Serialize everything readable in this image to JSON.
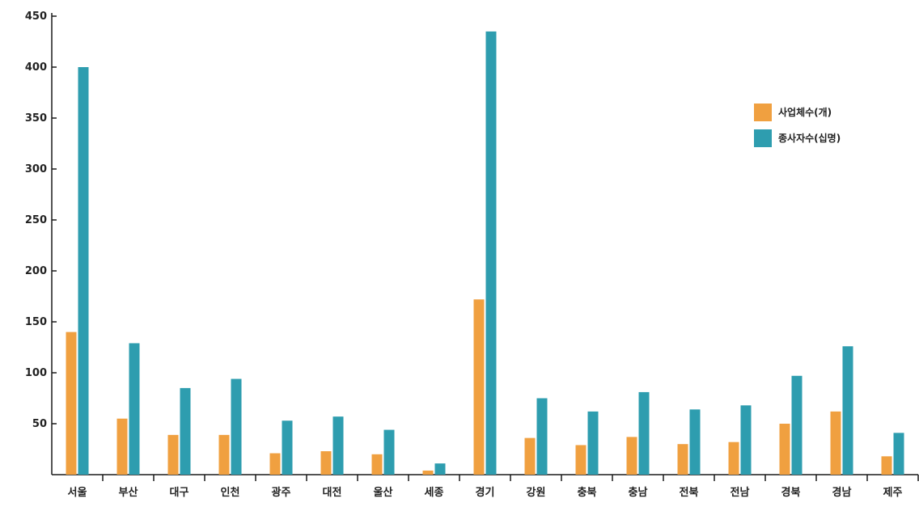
{
  "chart_data": {
    "type": "bar",
    "categories": [
      "서울",
      "부산",
      "대구",
      "인천",
      "광주",
      "대전",
      "울산",
      "세종",
      "경기",
      "강원",
      "충북",
      "충남",
      "전북",
      "전남",
      "경북",
      "경남",
      "제주"
    ],
    "series": [
      {
        "name": "사업체수(개)",
        "color": "#F0A040",
        "values": [
          140,
          55,
          39,
          39,
          21,
          23,
          20,
          4,
          172,
          36,
          29,
          37,
          30,
          32,
          50,
          62,
          18
        ]
      },
      {
        "name": "종사자수(십명)",
        "color": "#2E9DAF",
        "values": [
          400,
          129,
          85,
          94,
          53,
          57,
          44,
          11,
          435,
          75,
          62,
          81,
          64,
          68,
          97,
          126,
          41
        ]
      }
    ],
    "yticks": [
      50,
      100,
      150,
      200,
      250,
      300,
      350,
      400,
      450
    ],
    "ylim": [
      0,
      450
    ],
    "legend_position": "top-right",
    "grid": false
  }
}
